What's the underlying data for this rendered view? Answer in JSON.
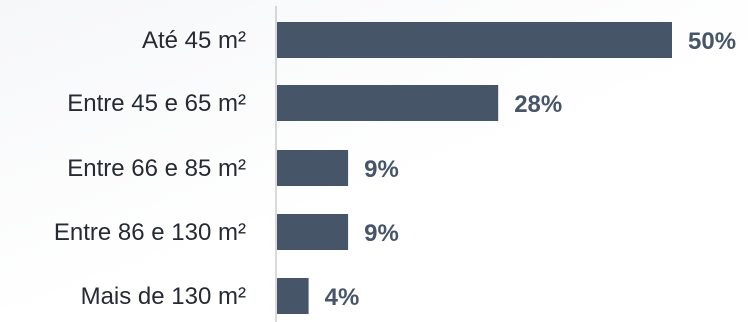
{
  "colors": {
    "bar": "#475569",
    "value_label": "#475569",
    "category_label": "#262b33",
    "axis": "#b0b4ba"
  },
  "chart_data": {
    "type": "bar",
    "orientation": "horizontal",
    "categories": [
      "Até 45 m²",
      "Entre 45 e 65 m²",
      "Entre 66 e 85 m²",
      "Entre 86 e 130 m²",
      "Mais de 130 m²"
    ],
    "values": [
      50,
      28,
      9,
      9,
      4
    ],
    "value_labels": [
      "50%",
      "28%",
      "9%",
      "9%",
      "4%"
    ],
    "unit": "%",
    "xlim": [
      0,
      50
    ],
    "grid": false,
    "legend": "none"
  }
}
